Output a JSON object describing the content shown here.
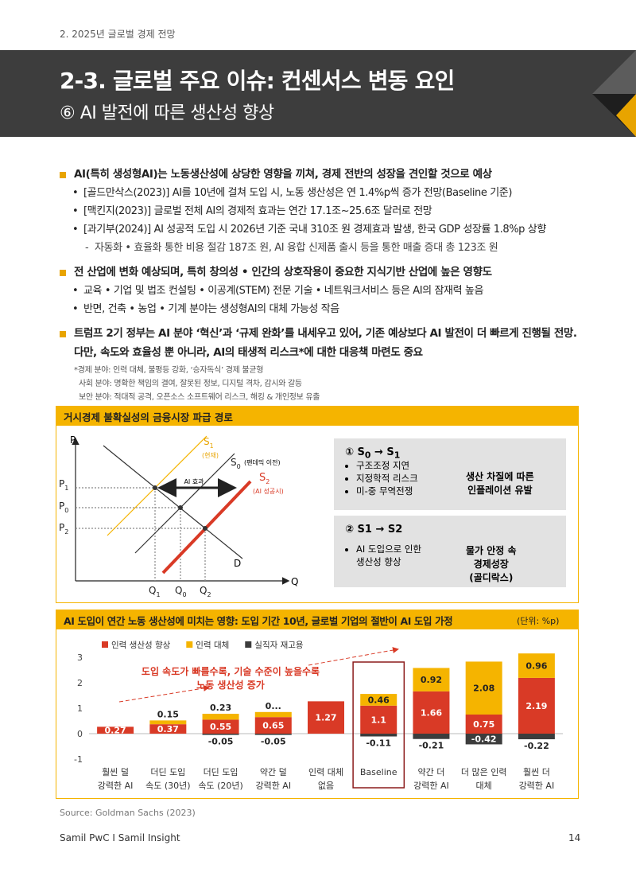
{
  "header": {
    "section": "2. 2025년 글로벌 경제 전망",
    "title": "2-3. 글로벌 주요 이슈: 컨센서스 변동 요인",
    "subtitle": "⑥ AI 발전에 따른 생산성 향상"
  },
  "body": [
    {
      "level": 1,
      "text": "AI(특히 생성형AI)는 노동생산성에 상당한 영향을 끼쳐, 경제 전반의 성장을 견인할 것으로 예상"
    },
    {
      "level": 2,
      "text": "[골드만삭스(2023)] AI를 10년에 걸쳐 도입 시, 노동 생산성은 연 1.4%p씩 증가 전망(Baseline 기준)"
    },
    {
      "level": 2,
      "text": "[맥킨지(2023)] 글로벌 전체 AI의 경제적 효과는 연간 17.1조~25.6조 달러로 전망"
    },
    {
      "level": 2,
      "text": "[과기부(2024)] AI 성공적 도입 시 2026년 기준 국내 310조 원 경제효과 발생, 한국 GDP 성장률 1.8%p 상향"
    },
    {
      "level": 3,
      "text": "자동화 • 효율화 통한 비용 절감 187조 원, AI 융합 신제품 출시 등을 통한 매출 증대 총 123조 원"
    },
    {
      "level": 1,
      "text": "전 산업에 변화 예상되며, 특히 창의성 • 인간의 상호작용이 중요한 지식기반 산업에 높은 영향도"
    },
    {
      "level": 2,
      "text": "교육 • 기업 및 법조 컨설팅 • 이공계(STEM) 전문 기술 • 네트워크서비스 등은 AI의 잠재력 높음"
    },
    {
      "level": 2,
      "text": "반면, 건축 • 농업 • 기계 분야는 생성형AI의 대체 가능성 작음"
    },
    {
      "level": 1,
      "text": "트럼프 2기 정부는 AI 분야 ‘혁신’과 ‘규제 완화’를 내세우고 있어, 기존 예상보다 AI 발전이 더 빠르게 진행될 전망. 다만, 속도와 효율성 뿐 아니라, AI의 태생적 리스크*에 대한 대응책 마련도 중요"
    }
  ],
  "notes": [
    "*경제 분야: 인력 대체, 불평등 강화, ‘승자독식’ 경제 불균형",
    "사회 분야: 명확한 책임의 결여, 잘못된 정보, 디지털 격차, 감시와 갈등",
    "보안 분야: 적대적 공격, 오픈소스 소프트웨어 리스크, 해킹 & 개인정보 유출"
  ],
  "diagram": {
    "title": "거시경제 불확실성의 금융시장 파급 경로",
    "axis": {
      "p": "P",
      "q": "Q",
      "p1": [
        "P",
        "1"
      ],
      "p0": [
        "P",
        "0"
      ],
      "p2": [
        "P",
        "2"
      ],
      "q1": [
        "Q",
        "1"
      ],
      "q0": [
        "Q",
        "0"
      ],
      "q2": [
        "Q",
        "2"
      ]
    },
    "curves": {
      "s1": [
        "S",
        "1"
      ],
      "s1_note": "(현재)",
      "s0": [
        "S",
        "0"
      ],
      "s0_note": "(팬데믹 이전)",
      "s2": [
        "S",
        "2"
      ],
      "s2_note": "(AI 성공시)",
      "d": "D",
      "effect": "AI 효과"
    },
    "box1": {
      "title": [
        "① S",
        "0",
        " → S",
        "1"
      ],
      "items": [
        "구조조정 지연",
        "지정학적 리스크",
        "미-중 무역전쟁"
      ],
      "result": "생산 차질에 따른\n인플레이션 유발"
    },
    "box2": {
      "title": "② S1 → S2",
      "items": [
        "AI 도입으로 인한\n생산성 향상"
      ],
      "result": "물가 안정 속\n경제성장\n(골디락스)"
    }
  },
  "chart_data": {
    "type": "stacked_bar",
    "title": "AI 도입이 연간 노동 생산성에 미치는 영향: 도입 기간 10년, 글로벌 기업의 절반이 AI 도입 가정",
    "unit": "(단위: %p)",
    "annotation": "도입 속도가 빠를수록, 기술 수준이 높을수록\n노동 생산성 증가",
    "categories": [
      "훨씬 덜\n강력한 AI",
      "더딘 도입\n속도 (30년)",
      "더딘 도입\n속도 (20년)",
      "약간 덜\n강력한 AI",
      "인력 대체\n없음",
      "Baseline",
      "약간 더\n강력한 AI",
      "더 많은 인력\n대체",
      "훨씬 더\n강력한 AI"
    ],
    "highlight": 5,
    "series": [
      {
        "name": "인력 생산성 향상",
        "color": "#d93a26",
        "values": [
          0.27,
          0.37,
          0.55,
          0.65,
          1.27,
          1.1,
          1.66,
          0.75,
          2.19
        ]
      },
      {
        "name": "인력 대체",
        "color": "#f5b400",
        "values": [
          null,
          0.15,
          0.23,
          0.2,
          null,
          0.46,
          0.92,
          2.08,
          0.96
        ],
        "value_labels": [
          null,
          "0.15",
          "0.23",
          "0...",
          null,
          "0.46",
          "0.92",
          "2.08",
          "0.96"
        ]
      },
      {
        "name": "실직자 재고용",
        "color": "#3c3c3c",
        "values": [
          null,
          null,
          -0.05,
          -0.05,
          null,
          -0.11,
          -0.21,
          -0.42,
          -0.22
        ]
      }
    ],
    "ylim": [
      -1,
      3
    ],
    "yticks": [
      -1,
      0,
      1,
      2,
      3
    ],
    "grid": false
  },
  "source": "Source:  Goldman Sachs (2023)",
  "footer": {
    "left": "Samil PwC Ⅰ Samil Insight",
    "page": "14"
  }
}
